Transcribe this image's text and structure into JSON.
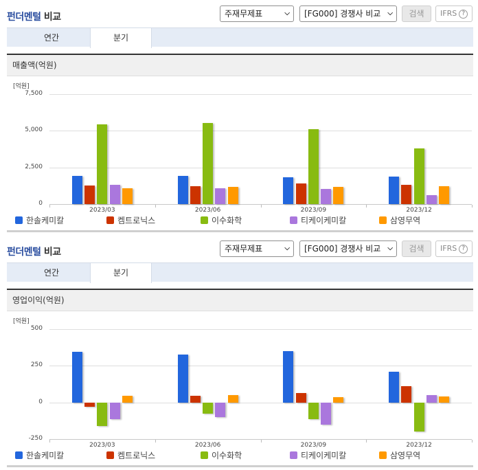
{
  "colors": {
    "title_accent": "#2b4ea0",
    "series": [
      "#2266dd",
      "#cc3300",
      "#88bb11",
      "#aa77dd",
      "#ff9900"
    ]
  },
  "panels": [
    {
      "header": {
        "title_part1": "펀더멘털",
        "title_part2": " 비교"
      },
      "controls": {
        "statement_select": "주재무제표",
        "compare_select": "[FG000] 경쟁사 비교",
        "search_button": "검색",
        "ifrs_button": "IFRS",
        "help_icon": "?"
      },
      "tabs": [
        {
          "label": "연간",
          "active": false
        },
        {
          "label": "분기",
          "active": true
        }
      ],
      "section_title": "매출액(억원)",
      "unit_label": "[억원]",
      "y_ticks": [
        "7,500",
        "5,000",
        "2,500",
        "0"
      ]
    },
    {
      "header": {
        "title_part1": "펀더멘털",
        "title_part2": " 비교"
      },
      "controls": {
        "statement_select": "주재무제표",
        "compare_select": "[FG000] 경쟁사 비교",
        "search_button": "검색",
        "ifrs_button": "IFRS",
        "help_icon": "?"
      },
      "tabs": [
        {
          "label": "연간",
          "active": false
        },
        {
          "label": "분기",
          "active": true
        }
      ],
      "section_title": "영업이익(억원)",
      "unit_label": "[억원]",
      "y_ticks": [
        "500",
        "250",
        "0",
        "-250"
      ]
    }
  ],
  "legend": [
    "한솔케미칼",
    "켐트로닉스",
    "이수화학",
    "티케이케미칼",
    "삼영무역"
  ],
  "chart_data": [
    {
      "type": "bar",
      "title": "매출액(억원)",
      "xlabel": "",
      "ylabel": "[억원]",
      "ylim": [
        0,
        7500
      ],
      "yticks": [
        0,
        2500,
        5000,
        7500
      ],
      "grid": true,
      "legend_position": "bottom",
      "categories": [
        "2023/03",
        "2023/06",
        "2023/09",
        "2023/12"
      ],
      "series": [
        {
          "name": "한솔케미칼",
          "color": "#2266dd",
          "values": [
            1930,
            1930,
            1830,
            1880
          ]
        },
        {
          "name": "켐트로닉스",
          "color": "#cc3300",
          "values": [
            1270,
            1220,
            1410,
            1310
          ]
        },
        {
          "name": "이수화학",
          "color": "#88bb11",
          "values": [
            5440,
            5530,
            5110,
            3800
          ]
        },
        {
          "name": "티케이케미칼",
          "color": "#aa77dd",
          "values": [
            1310,
            1080,
            1030,
            610
          ]
        },
        {
          "name": "삼영무역",
          "color": "#ff9900",
          "values": [
            1080,
            1170,
            1170,
            1220
          ]
        }
      ]
    },
    {
      "type": "bar",
      "title": "영업이익(억원)",
      "xlabel": "",
      "ylabel": "[억원]",
      "ylim": [
        -250,
        500
      ],
      "yticks": [
        -250,
        0,
        250,
        500
      ],
      "grid": true,
      "legend_position": "bottom",
      "categories": [
        "2023/03",
        "2023/06",
        "2023/09",
        "2023/12"
      ],
      "series": [
        {
          "name": "한솔케미칼",
          "color": "#2266dd",
          "values": [
            347,
            325,
            350,
            208
          ]
        },
        {
          "name": "켐트로닉스",
          "color": "#cc3300",
          "values": [
            -30,
            45,
            63,
            110
          ]
        },
        {
          "name": "이수화학",
          "color": "#88bb11",
          "values": [
            -160,
            -75,
            -115,
            -200
          ]
        },
        {
          "name": "티케이케미칼",
          "color": "#aa77dd",
          "values": [
            -115,
            -100,
            -150,
            50
          ]
        },
        {
          "name": "삼영무역",
          "color": "#ff9900",
          "values": [
            45,
            50,
            37,
            40
          ]
        }
      ]
    }
  ]
}
